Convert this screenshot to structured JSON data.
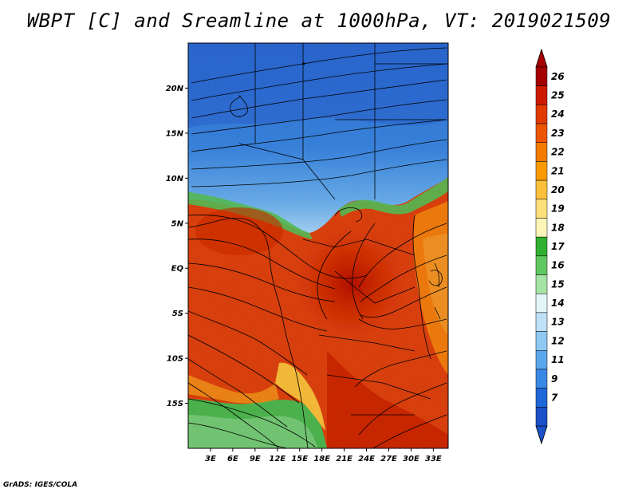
{
  "title": "WBPT [C] and Sreamline at 1000hPa, VT: 2019021509",
  "credit": "GrADS: IGES/COLA",
  "map": {
    "lon_range": [
      0,
      35
    ],
    "lat_range": [
      -20,
      25
    ],
    "lat_ticks": [
      {
        "value": 20,
        "label": "20N"
      },
      {
        "value": 15,
        "label": "15N"
      },
      {
        "value": 10,
        "label": "10N"
      },
      {
        "value": 5,
        "label": "5N"
      },
      {
        "value": 0,
        "label": "EQ"
      },
      {
        "value": -5,
        "label": "5S"
      },
      {
        "value": -10,
        "label": "10S"
      },
      {
        "value": -15,
        "label": "15S"
      }
    ],
    "lon_ticks": [
      {
        "value": 3,
        "label": "3E"
      },
      {
        "value": 6,
        "label": "6E"
      },
      {
        "value": 9,
        "label": "9E"
      },
      {
        "value": 12,
        "label": "12E"
      },
      {
        "value": 15,
        "label": "15E"
      },
      {
        "value": 18,
        "label": "18E"
      },
      {
        "value": 21,
        "label": "21E"
      },
      {
        "value": 24,
        "label": "24E"
      },
      {
        "value": 27,
        "label": "27E"
      },
      {
        "value": 30,
        "label": "30E"
      },
      {
        "value": 33,
        "label": "33E"
      }
    ]
  },
  "colorbar": {
    "labels": [
      "26",
      "25",
      "24",
      "23",
      "22",
      "21",
      "20",
      "19",
      "18",
      "17",
      "16",
      "15",
      "14",
      "13",
      "12",
      "11",
      "9",
      "7"
    ],
    "colors": [
      "#a50000",
      "#cc1b00",
      "#e23b00",
      "#ee5500",
      "#f57a00",
      "#fa9a00",
      "#fbbf3a",
      "#fce07a",
      "#fdf5b8",
      "#30b030",
      "#60c860",
      "#a6e4a6",
      "#e4f6f6",
      "#bfe0f8",
      "#90c8f4",
      "#5ca6ee",
      "#3a88e6",
      "#1f66d8",
      "#1a50c8"
    ],
    "top_color": "#a50000",
    "bottom_color": "#1a50c8"
  }
}
